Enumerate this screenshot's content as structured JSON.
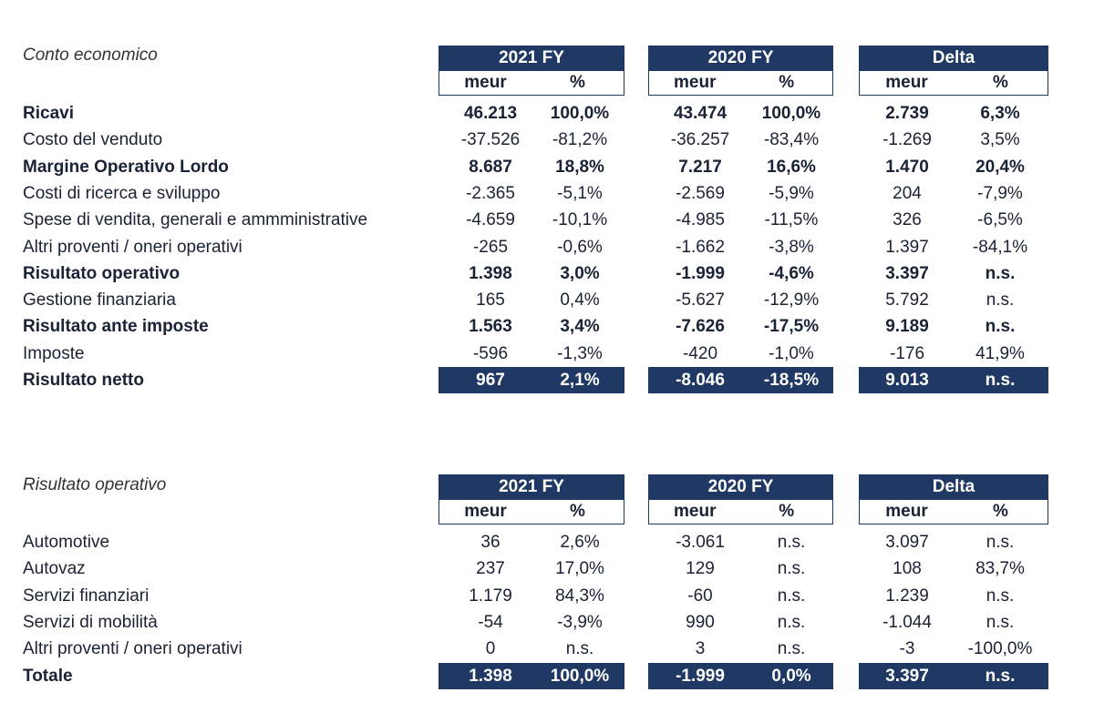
{
  "colors": {
    "navy": "#1f3864"
  },
  "table1": {
    "title": "Conto economico",
    "groups": [
      "2021 FY",
      "2020 FY",
      "Delta"
    ],
    "subheaders": [
      "meur",
      "%"
    ],
    "rows": [
      {
        "label": "Ricavi",
        "bold": true,
        "values": [
          "46.213",
          "100,0%",
          "43.474",
          "100,0%",
          "2.739",
          "6,3%"
        ]
      },
      {
        "label": "Costo del venduto",
        "bold": false,
        "values": [
          "-37.526",
          "-81,2%",
          "-36.257",
          "-83,4%",
          "-1.269",
          "3,5%"
        ]
      },
      {
        "label": "Margine Operativo Lordo",
        "bold": true,
        "values": [
          "8.687",
          "18,8%",
          "7.217",
          "16,6%",
          "1.470",
          "20,4%"
        ]
      },
      {
        "label": "Costi di ricerca e sviluppo",
        "bold": false,
        "values": [
          "-2.365",
          "-5,1%",
          "-2.569",
          "-5,9%",
          "204",
          "-7,9%"
        ]
      },
      {
        "label": "Spese di vendita, generali e ammministrative",
        "bold": false,
        "values": [
          "-4.659",
          "-10,1%",
          "-4.985",
          "-11,5%",
          "326",
          "-6,5%"
        ]
      },
      {
        "label": "Altri proventi / oneri operativi",
        "bold": false,
        "values": [
          "-265",
          "-0,6%",
          "-1.662",
          "-3,8%",
          "1.397",
          "-84,1%"
        ]
      },
      {
        "label": "Risultato operativo",
        "bold": true,
        "values": [
          "1.398",
          "3,0%",
          "-1.999",
          "-4,6%",
          "3.397",
          "n.s."
        ]
      },
      {
        "label": "Gestione finanziaria",
        "bold": false,
        "values": [
          "165",
          "0,4%",
          "-5.627",
          "-12,9%",
          "5.792",
          "n.s."
        ]
      },
      {
        "label": "Risultato ante imposte",
        "bold": true,
        "values": [
          "1.563",
          "3,4%",
          "-7.626",
          "-17,5%",
          "9.189",
          "n.s."
        ]
      },
      {
        "label": "Imposte",
        "bold": false,
        "values": [
          "-596",
          "-1,3%",
          "-420",
          "-1,0%",
          "-176",
          "41,9%"
        ]
      },
      {
        "label": "Risultato netto",
        "bold": true,
        "total": true,
        "values": [
          "967",
          "2,1%",
          "-8.046",
          "-18,5%",
          "9.013",
          "n.s."
        ]
      }
    ]
  },
  "table2": {
    "title": "Risultato operativo",
    "groups": [
      "2021 FY",
      "2020 FY",
      "Delta"
    ],
    "subheaders": [
      "meur",
      "%"
    ],
    "rows": [
      {
        "label": "Automotive",
        "bold": false,
        "values": [
          "36",
          "2,6%",
          "-3.061",
          "n.s.",
          "3.097",
          "n.s."
        ]
      },
      {
        "label": "Autovaz",
        "bold": false,
        "values": [
          "237",
          "17,0%",
          "129",
          "n.s.",
          "108",
          "83,7%"
        ]
      },
      {
        "label": "Servizi finanziari",
        "bold": false,
        "values": [
          "1.179",
          "84,3%",
          "-60",
          "n.s.",
          "1.239",
          "n.s."
        ]
      },
      {
        "label": "Servizi di mobilità",
        "bold": false,
        "values": [
          "-54",
          "-3,9%",
          "990",
          "n.s.",
          "-1.044",
          "n.s."
        ]
      },
      {
        "label": "Altri proventi / oneri operativi",
        "bold": false,
        "values": [
          "0",
          "n.s.",
          "3",
          "n.s.",
          "-3",
          "-100,0%"
        ]
      },
      {
        "label": "Totale",
        "bold": true,
        "total": true,
        "values": [
          "1.398",
          "100,0%",
          "-1.999",
          "0,0%",
          "3.397",
          "n.s."
        ]
      }
    ]
  }
}
